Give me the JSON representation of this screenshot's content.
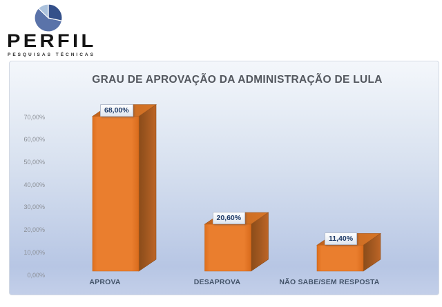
{
  "logo": {
    "brand": "PERFIL",
    "tagline": "PESQUISAS TÉCNICAS"
  },
  "colors": {
    "accent-orange": "#e87a28",
    "bar-side": "#9c541e",
    "bar-top": "#cf6d22",
    "value-text": "#1e3a66",
    "title-text": "#53575e",
    "category-text": "#44546a",
    "tick-text": "#8a8e95",
    "chart-border": "#d3d9e3",
    "chart-bg-top": "#f4f7fb",
    "chart-bg-mid": "#d9e2f0",
    "chart-bg-low": "#b7c6e4",
    "chart-bg-bottom": "#c3cfe9",
    "pie-dark": "#34508a",
    "pie-medium": "#5a73a9",
    "pie-light": "#abc2dd",
    "brand-text": "#141414"
  },
  "chart_data": {
    "type": "bar",
    "style": "3d-column",
    "title": "GRAU DE APROVAÇÃO DA ADMINISTRAÇÃO DE LULA",
    "categories": [
      "APROVA",
      "DESAPROVA",
      "NÃO SABE/SEM RESPOSTA"
    ],
    "values": [
      68.0,
      20.6,
      11.4
    ],
    "value_labels": [
      "68,00%",
      "20,60%",
      "11,40%"
    ],
    "ytick_labels": [
      "0,00%",
      "10,00%",
      "20,00%",
      "30,00%",
      "40,00%",
      "50,00%",
      "60,00%",
      "70,00%"
    ],
    "ylim": [
      0,
      70
    ],
    "xlabel": "",
    "ylabel": "",
    "grid": false,
    "legend": false
  }
}
